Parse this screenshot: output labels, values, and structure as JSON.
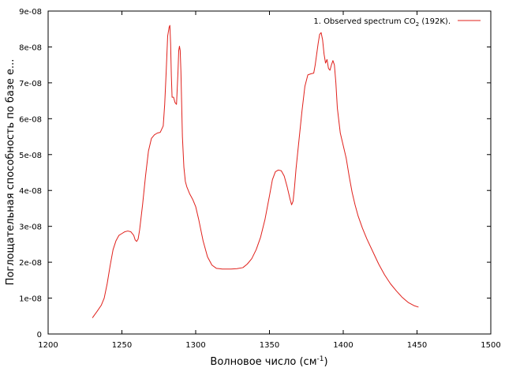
{
  "chart_data": {
    "type": "line",
    "title": "",
    "xlabel": "Волновое число (см",
    "xlabel_sup": "-1",
    "xlabel_end": ")",
    "ylabel": "Поглощательная способность по базе e...",
    "xlim": [
      1200,
      1500
    ],
    "ylim": [
      0,
      9e-08
    ],
    "x_ticks": [
      1200,
      1250,
      1300,
      1350,
      1400,
      1450,
      1500
    ],
    "x_tick_labels": [
      "1200",
      "1250",
      "1300",
      "1350",
      "1400",
      "1450",
      "1500"
    ],
    "y_ticks": [
      0,
      1e-08,
      2e-08,
      3e-08,
      4e-08,
      5e-08,
      6e-08,
      7e-08,
      8e-08,
      9e-08
    ],
    "y_tick_labels": [
      "0",
      "1e-08",
      "2e-08",
      "3e-08",
      "4e-08",
      "5e-08",
      "6e-08",
      "7e-08",
      "8e-08",
      "9e-08"
    ],
    "grid": false,
    "legend_position": "top-right",
    "series": [
      {
        "name": "1. Observed spectrum CO",
        "name_sub": "2",
        "name_end": " (192K).",
        "color": "#e0201b",
        "x": [
          1230,
          1233,
          1236,
          1238,
          1240,
          1242,
          1244,
          1246,
          1248,
          1250,
          1252,
          1254,
          1256,
          1258,
          1259,
          1260,
          1261,
          1262,
          1264,
          1266,
          1268,
          1270,
          1272,
          1274,
          1276,
          1278,
          1279,
          1280,
          1281,
          1282,
          1282.5,
          1283,
          1283.5,
          1284,
          1285,
          1286,
          1287,
          1288,
          1288.5,
          1289,
          1289.5,
          1290,
          1291,
          1292,
          1293,
          1294,
          1296,
          1298,
          1300,
          1302,
          1305,
          1308,
          1311,
          1314,
          1316,
          1318,
          1320,
          1324,
          1328,
          1332,
          1335,
          1338,
          1341,
          1344,
          1347,
          1350,
          1352,
          1354,
          1356,
          1358,
          1360,
          1362,
          1364,
          1365,
          1366,
          1367,
          1368,
          1370,
          1372,
          1374,
          1376,
          1378,
          1380,
          1381,
          1382,
          1383,
          1384,
          1385,
          1386,
          1387,
          1388,
          1389,
          1390,
          1391,
          1392,
          1393,
          1394,
          1395,
          1396,
          1398,
          1400,
          1402,
          1404,
          1406,
          1408,
          1410,
          1413,
          1416,
          1420,
          1424,
          1428,
          1432,
          1436,
          1440,
          1444,
          1448,
          1451
        ],
        "values": [
          4.5e-09,
          6.2e-09,
          8e-09,
          1e-08,
          1.4e-08,
          1.9e-08,
          2.35e-08,
          2.6e-08,
          2.75e-08,
          2.8e-08,
          2.85e-08,
          2.87e-08,
          2.85e-08,
          2.75e-08,
          2.62e-08,
          2.58e-08,
          2.65e-08,
          2.9e-08,
          3.6e-08,
          4.4e-08,
          5.1e-08,
          5.45e-08,
          5.55e-08,
          5.6e-08,
          5.62e-08,
          5.8e-08,
          6.4e-08,
          7.3e-08,
          8.3e-08,
          8.55e-08,
          8.6e-08,
          8.1e-08,
          7.2e-08,
          6.6e-08,
          6.6e-08,
          6.45e-08,
          6.4e-08,
          7.3e-08,
          7.9e-08,
          8.02e-08,
          7.9e-08,
          7.3e-08,
          5.5e-08,
          4.65e-08,
          4.25e-08,
          4.1e-08,
          3.9e-08,
          3.75e-08,
          3.55e-08,
          3.2e-08,
          2.6e-08,
          2.15e-08,
          1.92e-08,
          1.83e-08,
          1.82e-08,
          1.81e-08,
          1.81e-08,
          1.81e-08,
          1.82e-08,
          1.85e-08,
          1.95e-08,
          2.1e-08,
          2.35e-08,
          2.7e-08,
          3.2e-08,
          3.85e-08,
          4.3e-08,
          4.52e-08,
          4.57e-08,
          4.55e-08,
          4.4e-08,
          4.1e-08,
          3.75e-08,
          3.6e-08,
          3.7e-08,
          4.1e-08,
          4.6e-08,
          5.4e-08,
          6.2e-08,
          6.9e-08,
          7.22e-08,
          7.25e-08,
          7.27e-08,
          7.5e-08,
          7.8e-08,
          8.1e-08,
          8.35e-08,
          8.4e-08,
          8.2e-08,
          7.8e-08,
          7.55e-08,
          7.65e-08,
          7.4e-08,
          7.35e-08,
          7.5e-08,
          7.62e-08,
          7.5e-08,
          7e-08,
          6.3e-08,
          5.6e-08,
          5.25e-08,
          4.9e-08,
          4.4e-08,
          3.95e-08,
          3.6e-08,
          3.3e-08,
          2.95e-08,
          2.65e-08,
          2.3e-08,
          1.95e-08,
          1.65e-08,
          1.4e-08,
          1.2e-08,
          1.02e-08,
          8.8e-09,
          7.9e-09,
          7.5e-09
        ]
      }
    ]
  }
}
